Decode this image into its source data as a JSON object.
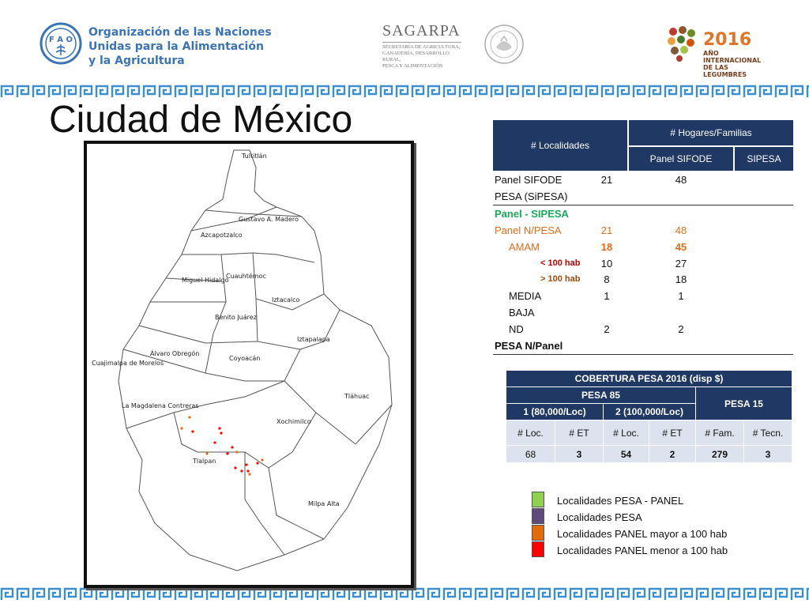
{
  "header": {
    "fao_org": [
      "Organización de las Naciones",
      "Unidas para la Alimentación",
      "y la Agricultura"
    ],
    "sagarpa_title": "SAGARPA",
    "sagarpa_sub": [
      "SECRETARÍA DE AGRICULTURA,",
      "GANADERÍA, DESARROLLO RURAL,",
      "PESCA Y ALIMENTACIÓN"
    ],
    "year_logo": {
      "year": "2016",
      "line1": "AÑO INTERNACIONAL",
      "line2": "DE LAS LEGUMBRES"
    },
    "band_color": "#3b8fd0"
  },
  "title": "Ciudad de México",
  "map": {
    "labels": [
      "Tultitlán",
      "Gustavo A. Madero",
      "Azcapotzalco",
      "Cuauhtémoc",
      "Miguel Hidalgo",
      "Iztacalco",
      "Benito Juárez",
      "Iztapalapa",
      "Álvaro Obregón",
      "Coyoacán",
      "Cuajimalpa de Morelos",
      "Tláhuac",
      "La Magdalena Contreras",
      "Xochimilco",
      "Tlalpan",
      "Milpa Alta"
    ]
  },
  "table1": {
    "headers": {
      "localidades": "# Localidades",
      "hogares": "# Hogares/Familias",
      "panel_sifode": "Panel SIFODE",
      "sipesa": "SIPESA"
    },
    "rows": [
      {
        "label": "Panel SIFODE",
        "n": "21",
        "h": "48",
        "style": ""
      },
      {
        "label": "PESA (SiPESA)",
        "n": "",
        "h": "",
        "style": ""
      },
      {
        "label": "Panel - SIPESA",
        "n": "",
        "h": "",
        "style": "green"
      },
      {
        "label": "Panel N/PESA",
        "n": "21",
        "h": "48",
        "style": "orange"
      },
      {
        "label": "AMAM",
        "n": "18",
        "h": "45",
        "style": "orange-b"
      },
      {
        "label": "< 100 hab",
        "n": "10",
        "h": "27",
        "style": "sm-red"
      },
      {
        "label": "> 100 hab",
        "n": "8",
        "h": "18",
        "style": "sm-br"
      },
      {
        "label": "MEDIA",
        "n": "1",
        "h": "1",
        "style": ""
      },
      {
        "label": "BAJA",
        "n": "",
        "h": "",
        "style": ""
      },
      {
        "label": "ND",
        "n": "2",
        "h": "2",
        "style": ""
      },
      {
        "label": "PESA N/Panel",
        "n": "",
        "h": "",
        "style": "bold"
      }
    ]
  },
  "table2": {
    "title": "COBERTURA PESA 2016 (disp $)",
    "pesa85": "PESA 85",
    "pesa15": "PESA 15",
    "sub1": "1 (80,000/Loc)",
    "sub2": "2 (100,000/Loc)",
    "cols": [
      "#  Loc.",
      "# ET",
      "# Loc.",
      "# ET",
      "# Fam.",
      "# Tecn."
    ],
    "values": [
      "68",
      "3",
      "54",
      "2",
      "279",
      "3"
    ]
  },
  "legend": [
    {
      "color": "#92d050",
      "label": "Localidades PESA - PANEL"
    },
    {
      "color": "#604a7b",
      "label": "Localidades PESA"
    },
    {
      "color": "#e36c09",
      "label": "Localidades PANEL mayor a 100 hab"
    },
    {
      "color": "#ff0000",
      "label": "Localidades PANEL menor a 100 hab"
    }
  ]
}
